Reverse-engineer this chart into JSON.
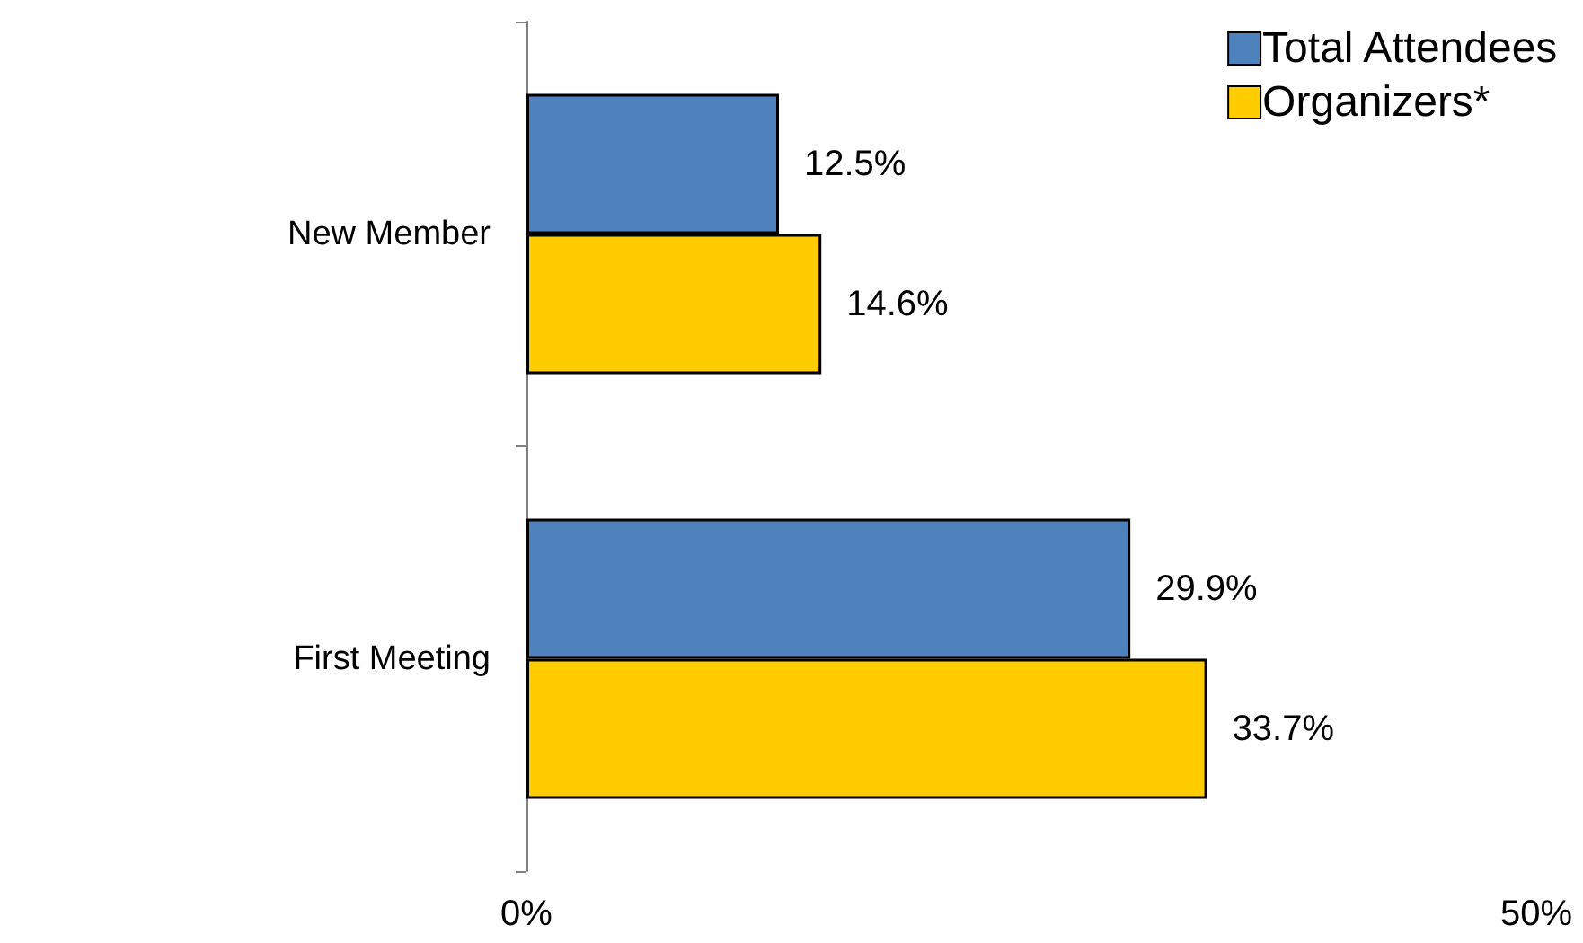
{
  "chart_data": {
    "type": "bar",
    "orientation": "horizontal",
    "categories": [
      "New Member",
      "First Meeting"
    ],
    "series": [
      {
        "name": "Total Attendees",
        "color": "#4f81bd",
        "values": [
          12.5,
          29.9
        ],
        "value_labels": [
          "12.5%",
          "29.9%"
        ]
      },
      {
        "name": "Organizers*",
        "color": "#ffcc00",
        "values": [
          14.6,
          33.7
        ],
        "value_labels": [
          "14.6%",
          "33.7%"
        ]
      }
    ],
    "xlim": [
      0,
      50
    ],
    "xticks": [
      {
        "value": 0,
        "label": "0%"
      },
      {
        "value": 50,
        "label": "50%"
      }
    ],
    "grid": false,
    "legend": "top right"
  }
}
